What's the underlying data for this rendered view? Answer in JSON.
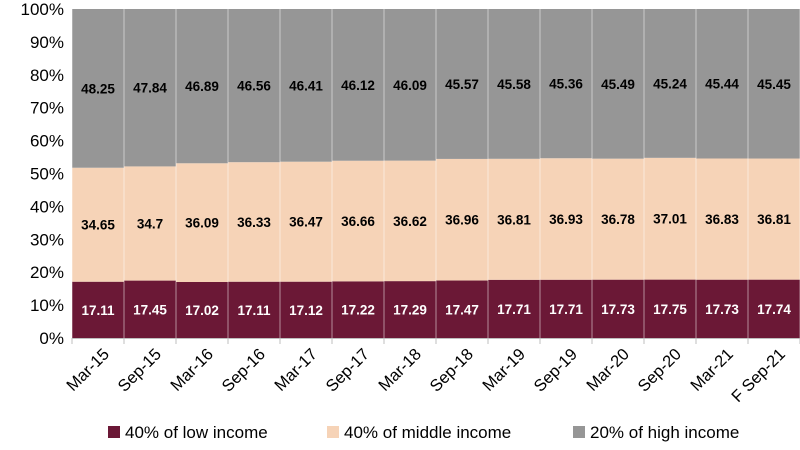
{
  "chart_data": {
    "type": "bar",
    "stacked": true,
    "normalized_100_percent": true,
    "categories": [
      "Mar-15",
      "Sep-15",
      "Mar-16",
      "Sep-16",
      "Mar-17",
      "Sep-17",
      "Mar-18",
      "Sep-18",
      "Mar-19",
      "Sep-19",
      "Mar-20",
      "Sep-20",
      "Mar-21",
      "F Sep-21"
    ],
    "series": [
      {
        "name": "40% of low income",
        "color": "#6b1836",
        "values": [
          17.11,
          17.45,
          17.02,
          17.11,
          17.12,
          17.22,
          17.29,
          17.47,
          17.71,
          17.71,
          17.73,
          17.75,
          17.73,
          17.74
        ]
      },
      {
        "name": "40% of middle income",
        "color": "#f6d3b7",
        "values": [
          34.65,
          34.7,
          36.09,
          36.33,
          36.47,
          36.66,
          36.62,
          36.96,
          36.81,
          36.93,
          36.78,
          37.01,
          36.83,
          36.81
        ]
      },
      {
        "name": "20% of high income",
        "color": "#969696",
        "values": [
          48.25,
          47.84,
          46.89,
          46.56,
          46.41,
          46.12,
          46.09,
          45.57,
          45.58,
          45.36,
          45.49,
          45.24,
          45.44,
          45.45
        ]
      }
    ],
    "labels": [
      [
        "17.11",
        "17.45",
        "17.02",
        "17.11",
        "17.12",
        "17.22",
        "17.29",
        "17.47",
        "17.71",
        "17.71",
        "17.73",
        "17.75",
        "17.73",
        "17.74"
      ],
      [
        "34.65",
        "34.7",
        "36.09",
        "36.33",
        "36.47",
        "36.66",
        "36.62",
        "36.96",
        "36.81",
        "36.93",
        "36.78",
        "37.01",
        "36.83",
        "36.81"
      ],
      [
        "48.25",
        "47.84",
        "46.89",
        "46.56",
        "46.41",
        "46.12",
        "46.09",
        "45.57",
        "45.58",
        "45.36",
        "45.49",
        "45.24",
        "45.44",
        "45.45"
      ]
    ],
    "y_ticks": [
      "0%",
      "10%",
      "20%",
      "30%",
      "40%",
      "50%",
      "60%",
      "70%",
      "80%",
      "90%",
      "100%"
    ],
    "ylim": [
      0,
      100
    ],
    "title": "",
    "xlabel": "",
    "ylabel": "",
    "grid": false,
    "legend_position": "bottom"
  }
}
